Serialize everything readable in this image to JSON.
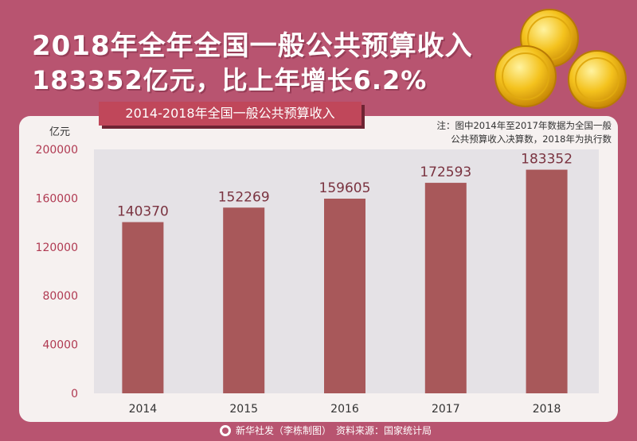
{
  "headline": {
    "line1": "2018年全年全国一般公共预算收入",
    "line2": "183352亿元，比上年增长6.2%"
  },
  "note": {
    "line1": "注：图中2014年至2017年数据为全国一般",
    "line2": "公共预算收入决算数，2018年为执行数"
  },
  "footer": {
    "credit": "新华社发（李栋制图）",
    "source": "资料来源：国家统计局"
  },
  "colors": {
    "background": "#b85470",
    "bar": "#a8585a",
    "title_bar": "#c0475a",
    "panel": "#f6f1f0"
  },
  "chart_data": {
    "type": "bar",
    "title": "2014-2018年全国一般公共预算收入",
    "ylabel": "亿元",
    "categories": [
      "2014",
      "2015",
      "2016",
      "2017",
      "2018"
    ],
    "values": [
      140370,
      152269,
      159605,
      172593,
      183352
    ],
    "yticks": [
      0,
      40000,
      80000,
      120000,
      160000,
      200000
    ],
    "ylim": [
      0,
      200000
    ],
    "grid": false,
    "legend": "none"
  }
}
